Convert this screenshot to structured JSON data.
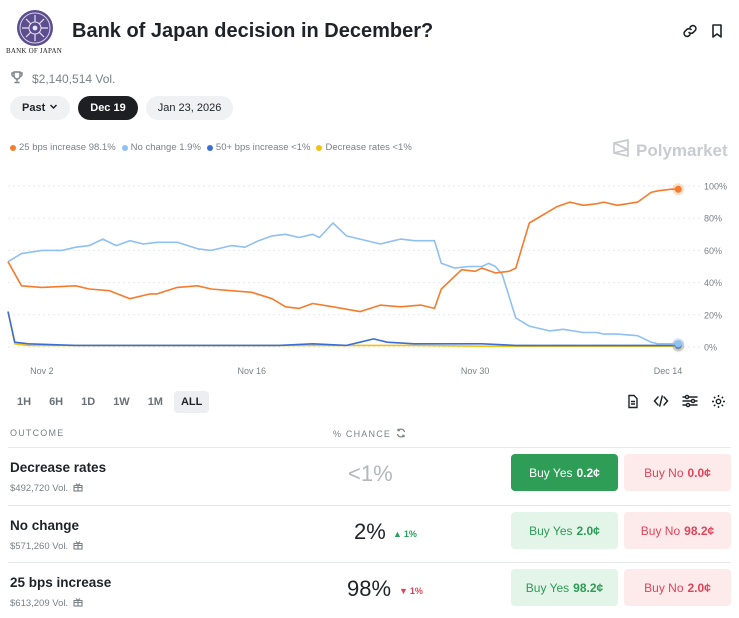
{
  "header": {
    "logo_caption": "BANK OF JAPAN",
    "title": "Bank of Japan decision in December?",
    "volume": "$2,140,514 Vol.",
    "icons": [
      "link-icon",
      "bookmark-icon",
      "trophy-icon"
    ]
  },
  "date_tabs": [
    {
      "label": "Past",
      "has_chevron": true
    },
    {
      "label": "Dec 19",
      "active": true
    },
    {
      "label": "Jan 23, 2026"
    }
  ],
  "legend": [
    {
      "label": "25 bps increase 98.1%",
      "color": "#f57c2c"
    },
    {
      "label": "No change 1.9%",
      "color": "#8ec0f2"
    },
    {
      "label": "50+ bps increase <1%",
      "color": "#3b6fd8"
    },
    {
      "label": "Decrease rates <1%",
      "color": "#f3c20e"
    }
  ],
  "brand": "Polymarket",
  "chart_data": {
    "type": "line",
    "x_ticks": [
      "Nov 2",
      "Nov 16",
      "Nov 30",
      "Dec 14"
    ],
    "y_ticks": [
      "100%",
      "80%",
      "60%",
      "40%",
      "20%",
      "0%"
    ],
    "ylim": [
      0,
      100
    ],
    "grid": true,
    "x_range": [
      0,
      100
    ],
    "series": [
      {
        "name": "25 bps increase",
        "color": "#f57c2c",
        "x": [
          0,
          2,
          5,
          10,
          12,
          15,
          18,
          21,
          22,
          25,
          28,
          30,
          33,
          36,
          39,
          41,
          43,
          45,
          48,
          52,
          55,
          58,
          61,
          63,
          64,
          67,
          69,
          70,
          72,
          74,
          75,
          77,
          79,
          81,
          83,
          85,
          87,
          88,
          90,
          93,
          95,
          96,
          98,
          99
        ],
        "y": [
          53,
          38,
          37,
          38,
          36,
          35,
          30,
          33,
          33,
          37,
          38,
          36,
          35,
          34,
          30,
          25,
          24,
          27,
          25,
          22,
          26,
          25,
          26,
          24,
          36,
          48,
          47,
          49,
          46,
          47,
          49,
          77,
          82,
          87,
          90,
          88,
          89,
          90,
          88,
          90,
          96,
          97,
          98,
          98
        ]
      },
      {
        "name": "No change",
        "color": "#8ec0f2",
        "x": [
          0,
          2,
          5,
          8,
          10,
          12,
          14,
          16,
          18,
          20,
          22,
          25,
          28,
          30,
          33,
          35,
          37,
          39,
          41,
          43,
          45,
          46,
          48,
          50,
          52,
          55,
          57,
          58,
          60,
          63,
          64,
          66,
          68,
          70,
          71,
          72,
          73,
          75,
          77,
          80,
          82,
          85,
          87,
          88,
          90,
          93,
          95,
          96,
          98,
          99
        ],
        "y": [
          53,
          58,
          60,
          60,
          62,
          63,
          67,
          63,
          66,
          64,
          65,
          65,
          61,
          60,
          63,
          62,
          66,
          69,
          70,
          68,
          70,
          68,
          77,
          69,
          67,
          64,
          66,
          67,
          66,
          66,
          52,
          49,
          50,
          50,
          52,
          50,
          45,
          18,
          13,
          10,
          11,
          9,
          9,
          8,
          8,
          7,
          3,
          2,
          2,
          2
        ]
      },
      {
        "name": "50+ bps increase",
        "color": "#3b6fd8",
        "x": [
          0,
          1,
          3,
          10,
          20,
          30,
          40,
          45,
          50,
          52,
          54,
          56,
          60,
          65,
          70,
          75,
          80,
          85,
          90,
          95,
          99
        ],
        "y": [
          22,
          3,
          2,
          1,
          1,
          1,
          1,
          2,
          1,
          3,
          5,
          3,
          2,
          2,
          2,
          1,
          1,
          1,
          1,
          1,
          1
        ]
      },
      {
        "name": "Decrease rates",
        "color": "#f3c20e",
        "x": [
          0,
          1,
          3,
          10,
          20,
          30,
          40,
          50,
          60,
          70,
          80,
          90,
          99
        ],
        "y": [
          22,
          2,
          1,
          1,
          1,
          1,
          1,
          1,
          1,
          0.5,
          0.5,
          0.5,
          0.5
        ]
      }
    ]
  },
  "range_tabs": [
    {
      "label": "1H"
    },
    {
      "label": "6H"
    },
    {
      "label": "1D"
    },
    {
      "label": "1W"
    },
    {
      "label": "1M"
    },
    {
      "label": "ALL",
      "active": true
    }
  ],
  "tool_icons": [
    "document-icon",
    "code-icon",
    "sliders-icon",
    "gear-icon"
  ],
  "table": {
    "col_outcome": "OUTCOME",
    "col_chance": "% CHANCE",
    "rows": [
      {
        "name": "Decrease rates",
        "vol": "$492,720 Vol.",
        "pct": "<1%",
        "muted": true,
        "delta": "",
        "delta_dir": "",
        "yes_label": "Buy Yes",
        "yes_price": "0.2¢",
        "yes_solid": true,
        "no_label": "Buy No",
        "no_price": "0.0¢"
      },
      {
        "name": "No change",
        "vol": "$571,260 Vol.",
        "pct": "2%",
        "muted": false,
        "delta": "1%",
        "delta_dir": "up",
        "yes_label": "Buy Yes",
        "yes_price": "2.0¢",
        "yes_solid": false,
        "no_label": "Buy No",
        "no_price": "98.2¢"
      },
      {
        "name": "25 bps increase",
        "vol": "$613,209 Vol.",
        "pct": "98%",
        "muted": false,
        "delta": "1%",
        "delta_dir": "down",
        "yes_label": "Buy Yes",
        "yes_price": "98.2¢",
        "yes_solid": false,
        "no_label": "Buy No",
        "no_price": "2.0¢"
      }
    ]
  }
}
